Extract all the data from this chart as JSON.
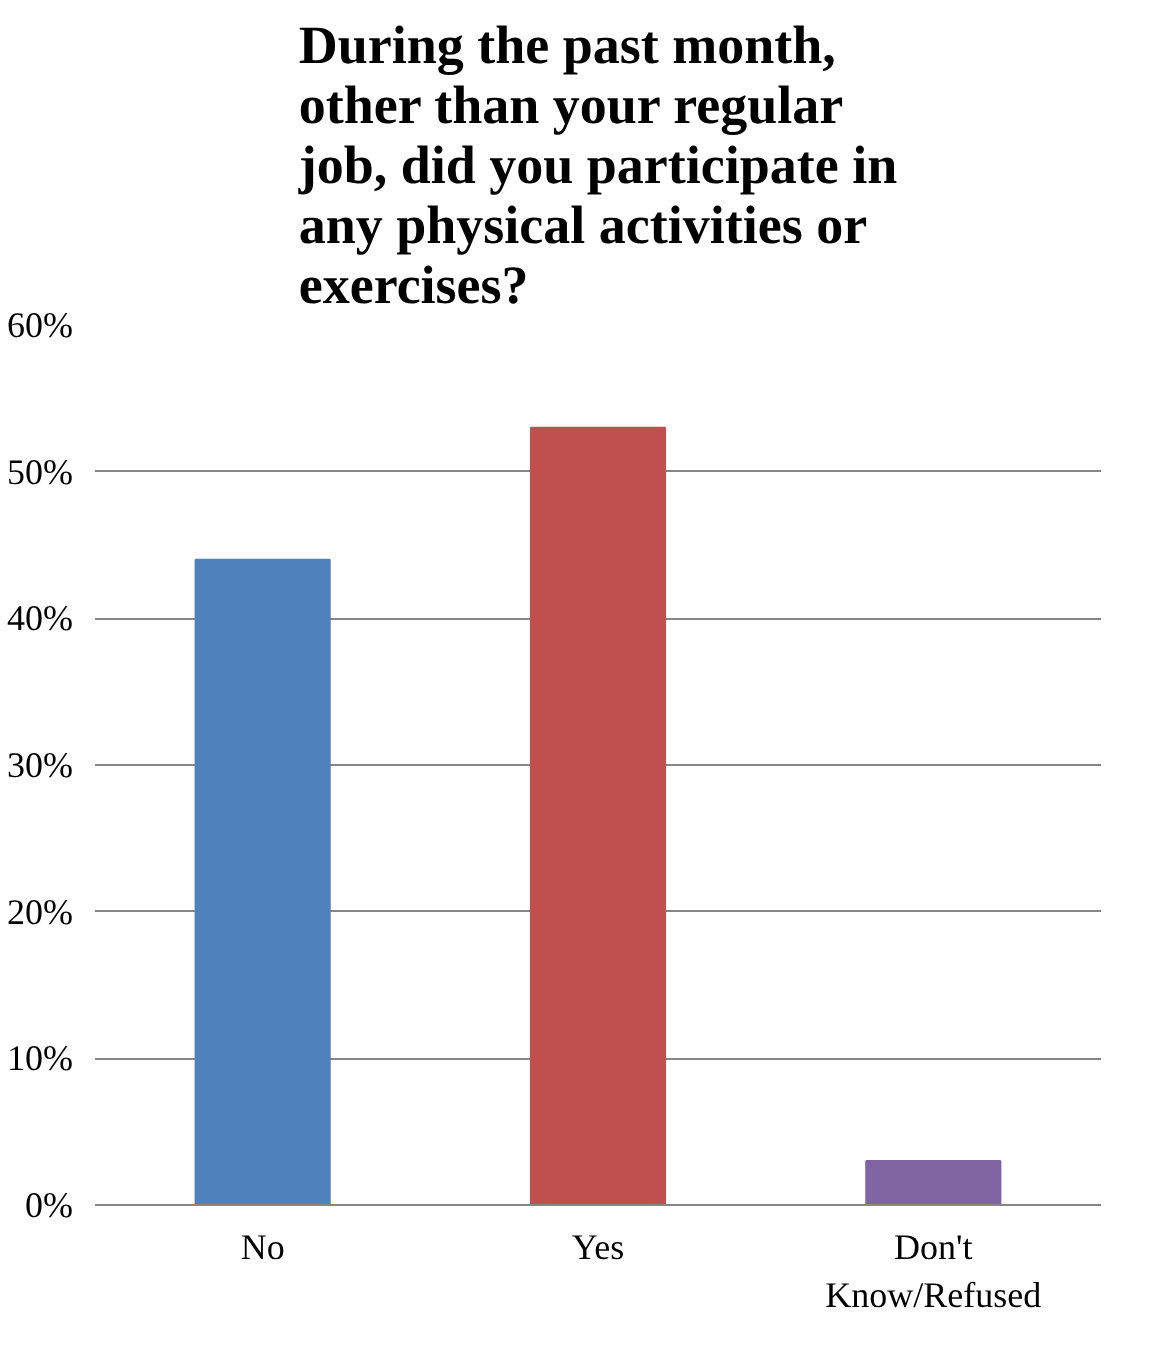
{
  "chart_data": {
    "type": "bar",
    "title": "During the past month, other than your regular job, did you participate in any physical activities or exercises?",
    "categories": [
      "No",
      "Yes",
      "Don't Know/Refused"
    ],
    "values": [
      44,
      53,
      3
    ],
    "colors": [
      "#4f81bd",
      "#c0504d",
      "#8064a2"
    ],
    "ylim": [
      0,
      60
    ],
    "yticks": [
      {
        "value": 0,
        "label": "0%"
      },
      {
        "value": 10,
        "label": "10%"
      },
      {
        "value": 20,
        "label": "20%"
      },
      {
        "value": 30,
        "label": "30%"
      },
      {
        "value": 40,
        "label": "40%"
      },
      {
        "value": 50,
        "label": "50%"
      },
      {
        "value": 60,
        "label": "60%"
      }
    ],
    "grid": "y"
  }
}
